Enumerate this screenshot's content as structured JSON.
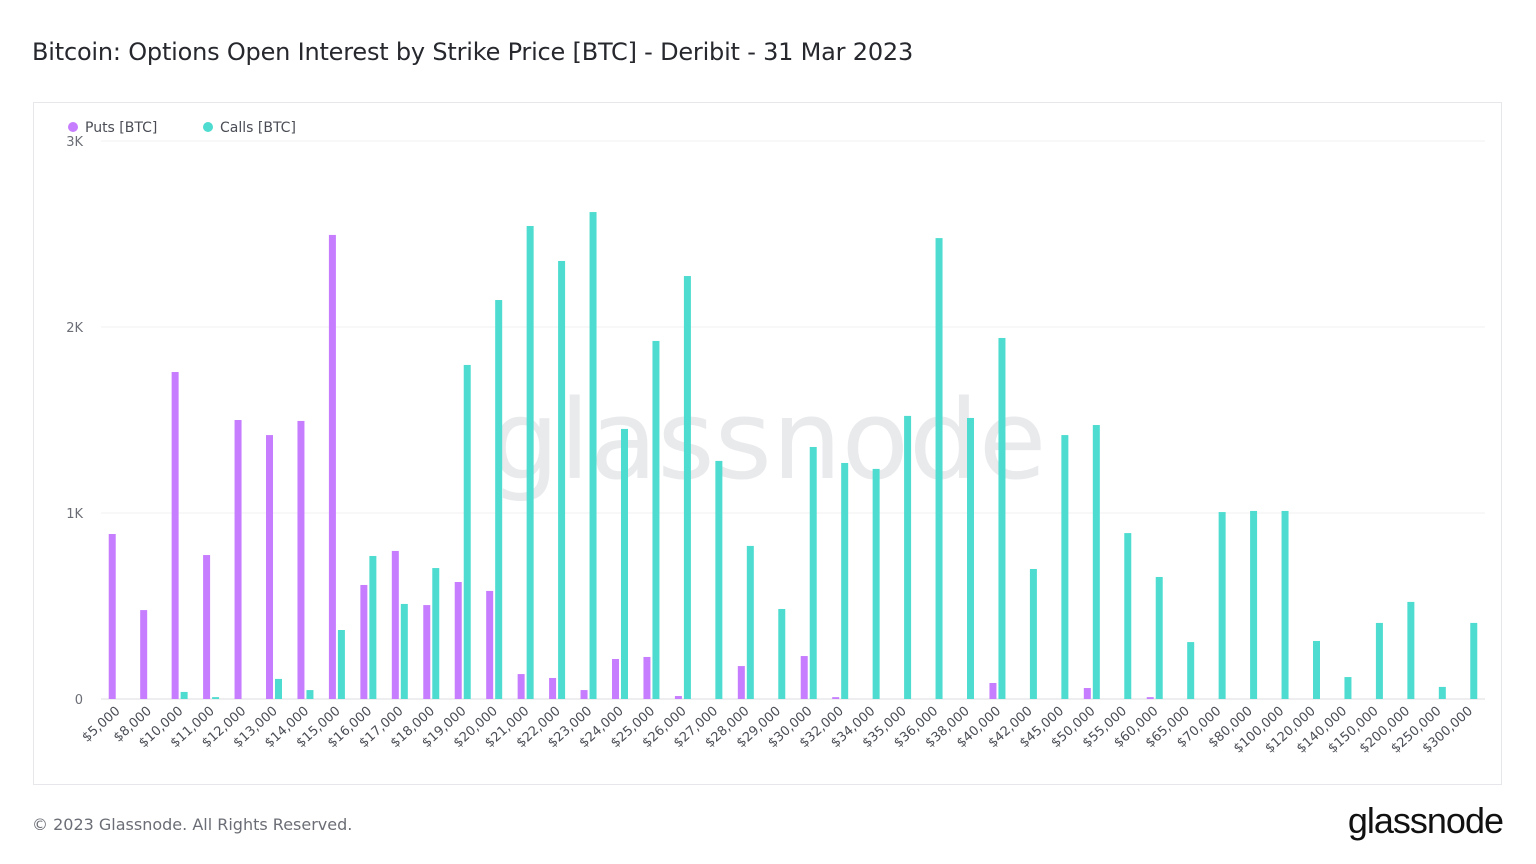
{
  "title": "Bitcoin: Options Open Interest by Strike Price [BTC] - Deribit - 31 Mar 2023",
  "footer": "© 2023 Glassnode. All Rights Reserved.",
  "brand": "glassnode",
  "watermark": "glassnode",
  "chart_data": {
    "type": "bar",
    "title": "Bitcoin: Options Open Interest by Strike Price [BTC] - Deribit - 31 Mar 2023",
    "xlabel": "",
    "ylabel": "",
    "ylim": [
      0,
      3000
    ],
    "yticks": [
      0,
      1000,
      2000,
      3000
    ],
    "ytick_labels": [
      "0",
      "1K",
      "2K",
      "3K"
    ],
    "grid": true,
    "legend": "top-left",
    "categories": [
      "$5,000",
      "$8,000",
      "$10,000",
      "$11,000",
      "$12,000",
      "$13,000",
      "$14,000",
      "$15,000",
      "$16,000",
      "$17,000",
      "$18,000",
      "$19,000",
      "$20,000",
      "$21,000",
      "$22,000",
      "$23,000",
      "$24,000",
      "$25,000",
      "$26,000",
      "$27,000",
      "$28,000",
      "$29,000",
      "$30,000",
      "$32,000",
      "$34,000",
      "$35,000",
      "$36,000",
      "$38,000",
      "$40,000",
      "$42,000",
      "$45,000",
      "$50,000",
      "$55,000",
      "$60,000",
      "$65,000",
      "$70,000",
      "$80,000",
      "$100,000",
      "$120,000",
      "$140,000",
      "$150,000",
      "$200,000",
      "$250,000",
      "$300,000"
    ],
    "series": [
      {
        "name": "Puts [BTC]",
        "color": "#c77dff",
        "values": [
          887,
          478,
          1758,
          774,
          1500,
          1419,
          1495,
          2495,
          613,
          796,
          505,
          629,
          581,
          134,
          113,
          48,
          215,
          226,
          16,
          0,
          177,
          0,
          231,
          10,
          0,
          0,
          0,
          0,
          86,
          0,
          0,
          59,
          0,
          10,
          0,
          0,
          0,
          0,
          0,
          0,
          0,
          0,
          0,
          0
        ]
      },
      {
        "name": "Calls [BTC]",
        "color": "#4ddccf",
        "values": [
          0,
          0,
          38,
          10,
          0,
          108,
          48,
          371,
          769,
          511,
          704,
          1796,
          2145,
          2543,
          2355,
          2618,
          1452,
          1925,
          2274,
          1280,
          823,
          484,
          1355,
          1269,
          1237,
          1522,
          2478,
          1511,
          1941,
          699,
          1419,
          1473,
          892,
          656,
          306,
          1005,
          1011,
          1011,
          312,
          118,
          409,
          522,
          65,
          409
        ]
      }
    ]
  }
}
